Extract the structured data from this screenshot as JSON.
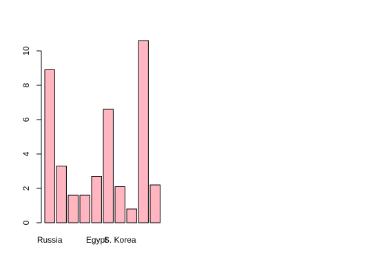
{
  "chart_data": {
    "type": "bar",
    "title": "",
    "xlabel": "",
    "ylabel": "",
    "ylim": [
      0,
      11
    ],
    "yticks": [
      0,
      2,
      4,
      6,
      8,
      10
    ],
    "categories": [
      "Russia",
      "",
      "",
      "",
      "Egypt",
      "",
      "S. Korea",
      "",
      "",
      ""
    ],
    "values": [
      8.9,
      3.3,
      1.6,
      1.6,
      2.7,
      6.6,
      2.1,
      0.8,
      10.6,
      2.2
    ],
    "bar_color": "#FFB6C1",
    "border_color": "#000000",
    "grid": false,
    "legend": "none"
  }
}
